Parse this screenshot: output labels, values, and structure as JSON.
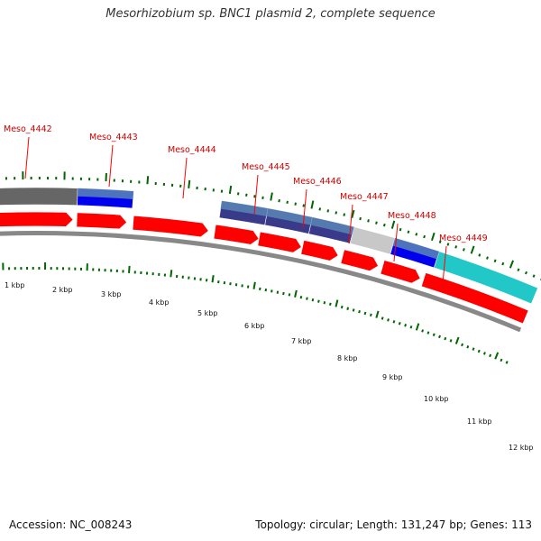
{
  "title": "Mesorhizobium sp. BNC1 plasmid 2, complete sequence",
  "footer": {
    "accession": "Accession: NC_008243",
    "topology": "Topology: circular; Length: 131,247 bp; Genes: 113"
  },
  "gene_labels": [
    "Meso_4442",
    "Meso_4443",
    "Meso_4444",
    "Meso_4445",
    "Meso_4446",
    "Meso_4447",
    "Meso_4448",
    "Meso_4449"
  ],
  "scale_labels": [
    "1 kbp",
    "2 kbp",
    "3 kbp",
    "4 kbp",
    "5 kbp",
    "6 kbp",
    "7 kbp",
    "8 kbp",
    "9 kbp",
    "10 kbp",
    "11 kbp",
    "12 kbp"
  ],
  "colors": {
    "gene_red": "#ff0000",
    "cog_blue": "#0000ee",
    "cog_steel": "#5b86b5",
    "cog_navy": "#3a3a8a",
    "cog_gray": "#c8c8c8",
    "cog_cyan": "#22c8c8",
    "cog_dark": "#666666",
    "backbone": "#888888",
    "tick_green": "#006600"
  }
}
